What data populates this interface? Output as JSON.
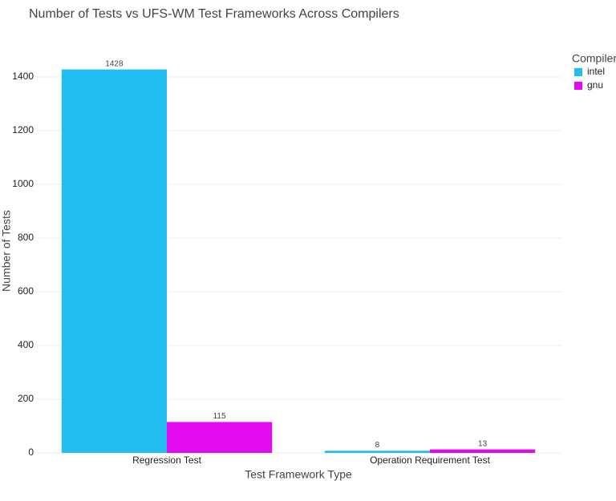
{
  "chart_data": {
    "type": "bar",
    "title": "Number of Tests vs UFS-WM Test Frameworks Across Compilers",
    "x_label": "Test Framework Type",
    "y_label": "Number of Tests",
    "categories": [
      "Regression Test",
      "Operation Requirement Test"
    ],
    "legend_title": "Compiler",
    "series": [
      {
        "name": "intel",
        "color": "#22bef2",
        "values": [
          1428,
          8
        ]
      },
      {
        "name": "gnu",
        "color": "#e20bf0",
        "values": [
          115,
          13
        ]
      }
    ],
    "ylim": [
      0,
      1500
    ],
    "yticks": [
      0,
      200,
      400,
      600,
      800,
      1000,
      1200,
      1400
    ],
    "grid": true,
    "legend_position": "right"
  }
}
